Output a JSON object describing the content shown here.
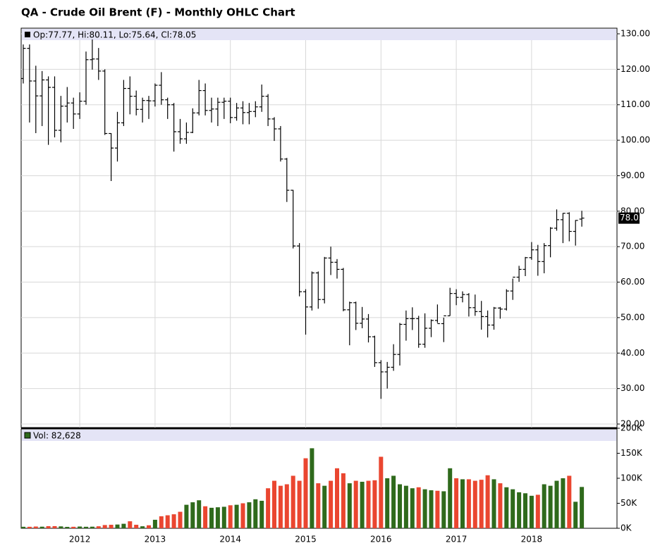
{
  "chart_data": {
    "type": "ohlc",
    "title": "QA - Crude Oil Brent (F) - Monthly OHLC Chart",
    "legend_text": "Op:77.77, Hi:80.11, Lo:75.64, Cl:78.05",
    "volume_legend": "Vol: 82,628",
    "categories": [
      null,
      null,
      null,
      null,
      null,
      null,
      null,
      null,
      null,
      "2012",
      null,
      null,
      null,
      null,
      null,
      null,
      null,
      null,
      null,
      null,
      null,
      "2013",
      null,
      null,
      null,
      null,
      null,
      null,
      null,
      null,
      null,
      null,
      null,
      "2014",
      null,
      null,
      null,
      null,
      null,
      null,
      null,
      null,
      null,
      null,
      null,
      "2015",
      null,
      null,
      null,
      null,
      null,
      null,
      null,
      null,
      null,
      null,
      null,
      "2016",
      null,
      null,
      null,
      null,
      null,
      null,
      null,
      null,
      null,
      null,
      null,
      "2017",
      null,
      null,
      null,
      null,
      null,
      null,
      null,
      null,
      null,
      null,
      null,
      "2018",
      null,
      null,
      null,
      null,
      null,
      null,
      null,
      null
    ],
    "open": [
      117.4,
      125.9,
      116.7,
      112.5,
      117.0,
      114.9,
      102.8,
      109.6,
      110.5,
      107.4,
      111.0,
      122.7,
      122.9,
      119.5,
      101.9,
      97.8,
      104.9,
      114.6,
      112.4,
      108.7,
      111.2,
      111.1,
      115.5,
      111.4,
      110.0,
      102.4,
      100.4,
      102.2,
      107.7,
      114.0,
      108.4,
      108.8,
      110.7,
      111.0,
      106.4,
      109.1,
      107.8,
      108.1,
      109.4,
      112.4,
      106.0,
      103.2,
      94.7,
      85.9,
      70.2,
      57.3,
      53.0,
      62.6,
      55.1,
      66.8,
      65.6,
      63.6,
      52.2,
      54.2,
      48.4,
      49.6,
      44.6,
      37.3,
      34.7,
      36.0,
      39.6,
      48.1,
      49.7,
      49.7,
      42.5,
      47.0,
      49.2,
      48.3,
      50.5,
      56.8,
      55.7,
      56.5,
      52.8,
      51.7,
      50.3,
      47.9,
      52.7,
      52.4,
      57.5,
      61.4,
      63.6,
      66.9,
      69.1,
      65.8,
      70.3,
      75.2,
      77.6,
      79.4,
      74.3,
      77.77
    ],
    "high": [
      127.0,
      127.0,
      121.0,
      119.5,
      118.0,
      118.0,
      112.5,
      115.0,
      112.0,
      113.5,
      125.0,
      128.4,
      126.0,
      120.0,
      102.0,
      108.0,
      117.0,
      118.0,
      114.0,
      112.0,
      112.5,
      116.0,
      119.2,
      112.0,
      110.5,
      106.0,
      105.0,
      109.0,
      117.0,
      116.0,
      112.0,
      112.0,
      112.0,
      112.0,
      110.5,
      111.0,
      110.5,
      111.0,
      115.7,
      113.0,
      106.5,
      104.0,
      95.0,
      86.0,
      71.0,
      58.0,
      63.0,
      63.0,
      67.1,
      70.0,
      66.5,
      64.0,
      54.5,
      54.5,
      53.0,
      51.0,
      44.9,
      38.0,
      37.5,
      42.5,
      48.5,
      52.0,
      52.9,
      50.5,
      51.2,
      49.5,
      53.7,
      50.0,
      58.4,
      58.0,
      57.4,
      56.9,
      56.5,
      54.7,
      52.0,
      53.0,
      53.0,
      58.0,
      61.0,
      64.6,
      67.1,
      71.3,
      70.5,
      71.0,
      75.5,
      80.5,
      79.5,
      79.7,
      77.5,
      80.11
    ],
    "low": [
      116.0,
      105.0,
      102.0,
      104.0,
      98.7,
      100.8,
      99.4,
      105.0,
      103.2,
      106.0,
      110.0,
      119.9,
      117.0,
      101.5,
      88.5,
      94.0,
      104.0,
      107.3,
      107.0,
      105.0,
      106.0,
      109.5,
      110.0,
      106.0,
      96.8,
      99.0,
      99.0,
      102.0,
      107.0,
      107.0,
      105.0,
      104.0,
      106.0,
      104.8,
      105.5,
      104.5,
      104.5,
      106.5,
      108.0,
      104.0,
      99.8,
      94.0,
      82.6,
      69.5,
      56.0,
      45.2,
      52.0,
      52.5,
      54.0,
      62.0,
      61.0,
      51.8,
      42.2,
      46.5,
      47.0,
      43.0,
      36.1,
      27.1,
      30.0,
      35.0,
      36.5,
      43.5,
      46.5,
      41.5,
      41.5,
      44.5,
      48.5,
      43.1,
      50.5,
      53.5,
      54.3,
      50.3,
      50.5,
      46.6,
      44.4,
      46.6,
      49.7,
      52.0,
      55.0,
      60.1,
      61.7,
      66.3,
      61.8,
      62.5,
      67.0,
      74.5,
      71.0,
      71.5,
      70.3,
      75.64
    ],
    "close": [
      125.9,
      116.7,
      112.5,
      117.0,
      114.9,
      102.8,
      109.6,
      110.5,
      107.4,
      111.0,
      122.7,
      122.9,
      119.5,
      101.9,
      97.8,
      104.9,
      114.6,
      112.4,
      108.7,
      111.2,
      111.1,
      115.5,
      111.4,
      110.0,
      102.4,
      100.4,
      102.2,
      107.7,
      114.0,
      108.4,
      108.8,
      110.7,
      111.0,
      106.4,
      109.1,
      107.8,
      108.1,
      109.4,
      112.4,
      106.0,
      103.2,
      94.7,
      85.9,
      70.2,
      57.3,
      53.0,
      62.6,
      55.1,
      66.8,
      65.6,
      63.6,
      52.2,
      54.2,
      48.4,
      49.6,
      44.6,
      37.3,
      34.7,
      36.0,
      39.6,
      48.1,
      49.7,
      49.7,
      42.5,
      47.0,
      49.2,
      48.3,
      50.5,
      56.8,
      55.7,
      56.5,
      52.8,
      51.7,
      50.3,
      47.9,
      52.7,
      52.4,
      57.5,
      61.4,
      63.6,
      66.9,
      69.1,
      65.8,
      70.3,
      75.2,
      77.6,
      79.4,
      74.3,
      77.4,
      78.05
    ],
    "volume": [
      3000,
      3000,
      3500,
      3200,
      4200,
      4300,
      3800,
      2800,
      3000,
      3500,
      3000,
      3200,
      4000,
      6500,
      7000,
      7500,
      9000,
      14000,
      7000,
      4000,
      6000,
      17000,
      24000,
      26000,
      28000,
      33000,
      47000,
      52000,
      56000,
      44000,
      41000,
      42000,
      43000,
      46000,
      47000,
      50000,
      52000,
      58000,
      55000,
      80000,
      95000,
      85000,
      88000,
      105000,
      95000,
      140000,
      160000,
      90000,
      85000,
      95000,
      120000,
      110000,
      90000,
      95000,
      93000,
      95000,
      96000,
      143000,
      100000,
      105000,
      88000,
      85000,
      80000,
      82000,
      78000,
      76000,
      75000,
      74000,
      120000,
      100000,
      98000,
      98000,
      95000,
      97000,
      106000,
      98000,
      90000,
      82000,
      78000,
      72000,
      70000,
      65000,
      67000,
      88000,
      85000,
      95000,
      100000,
      105000,
      53000,
      82628
    ],
    "ylim": [
      20,
      130
    ],
    "yticks": [
      {
        "value": 20,
        "label": "20.00"
      },
      {
        "value": 30,
        "label": "30.00"
      },
      {
        "value": 40,
        "label": "40.00"
      },
      {
        "value": 50,
        "label": "50.00"
      },
      {
        "value": 60,
        "label": "60.00"
      },
      {
        "value": 70,
        "label": "70.00"
      },
      {
        "value": 80,
        "label": "80.00"
      },
      {
        "value": 90,
        "label": "90.00"
      },
      {
        "value": 100,
        "label": "100.00"
      },
      {
        "value": 110,
        "label": "110.00"
      },
      {
        "value": 120,
        "label": "120.00"
      },
      {
        "value": 130,
        "label": "130.00"
      }
    ],
    "vlim": [
      0,
      200000
    ],
    "vticks": [
      {
        "value": 0,
        "label": "0K"
      },
      {
        "value": 50000,
        "label": "50K"
      },
      {
        "value": 100000,
        "label": "100K"
      },
      {
        "value": 150000,
        "label": "150K"
      },
      {
        "value": 200000,
        "label": "200K"
      }
    ],
    "bar_color": "#000000",
    "up_color": "#2f6a1c",
    "down_color": "#ea4630",
    "grid": true
  }
}
